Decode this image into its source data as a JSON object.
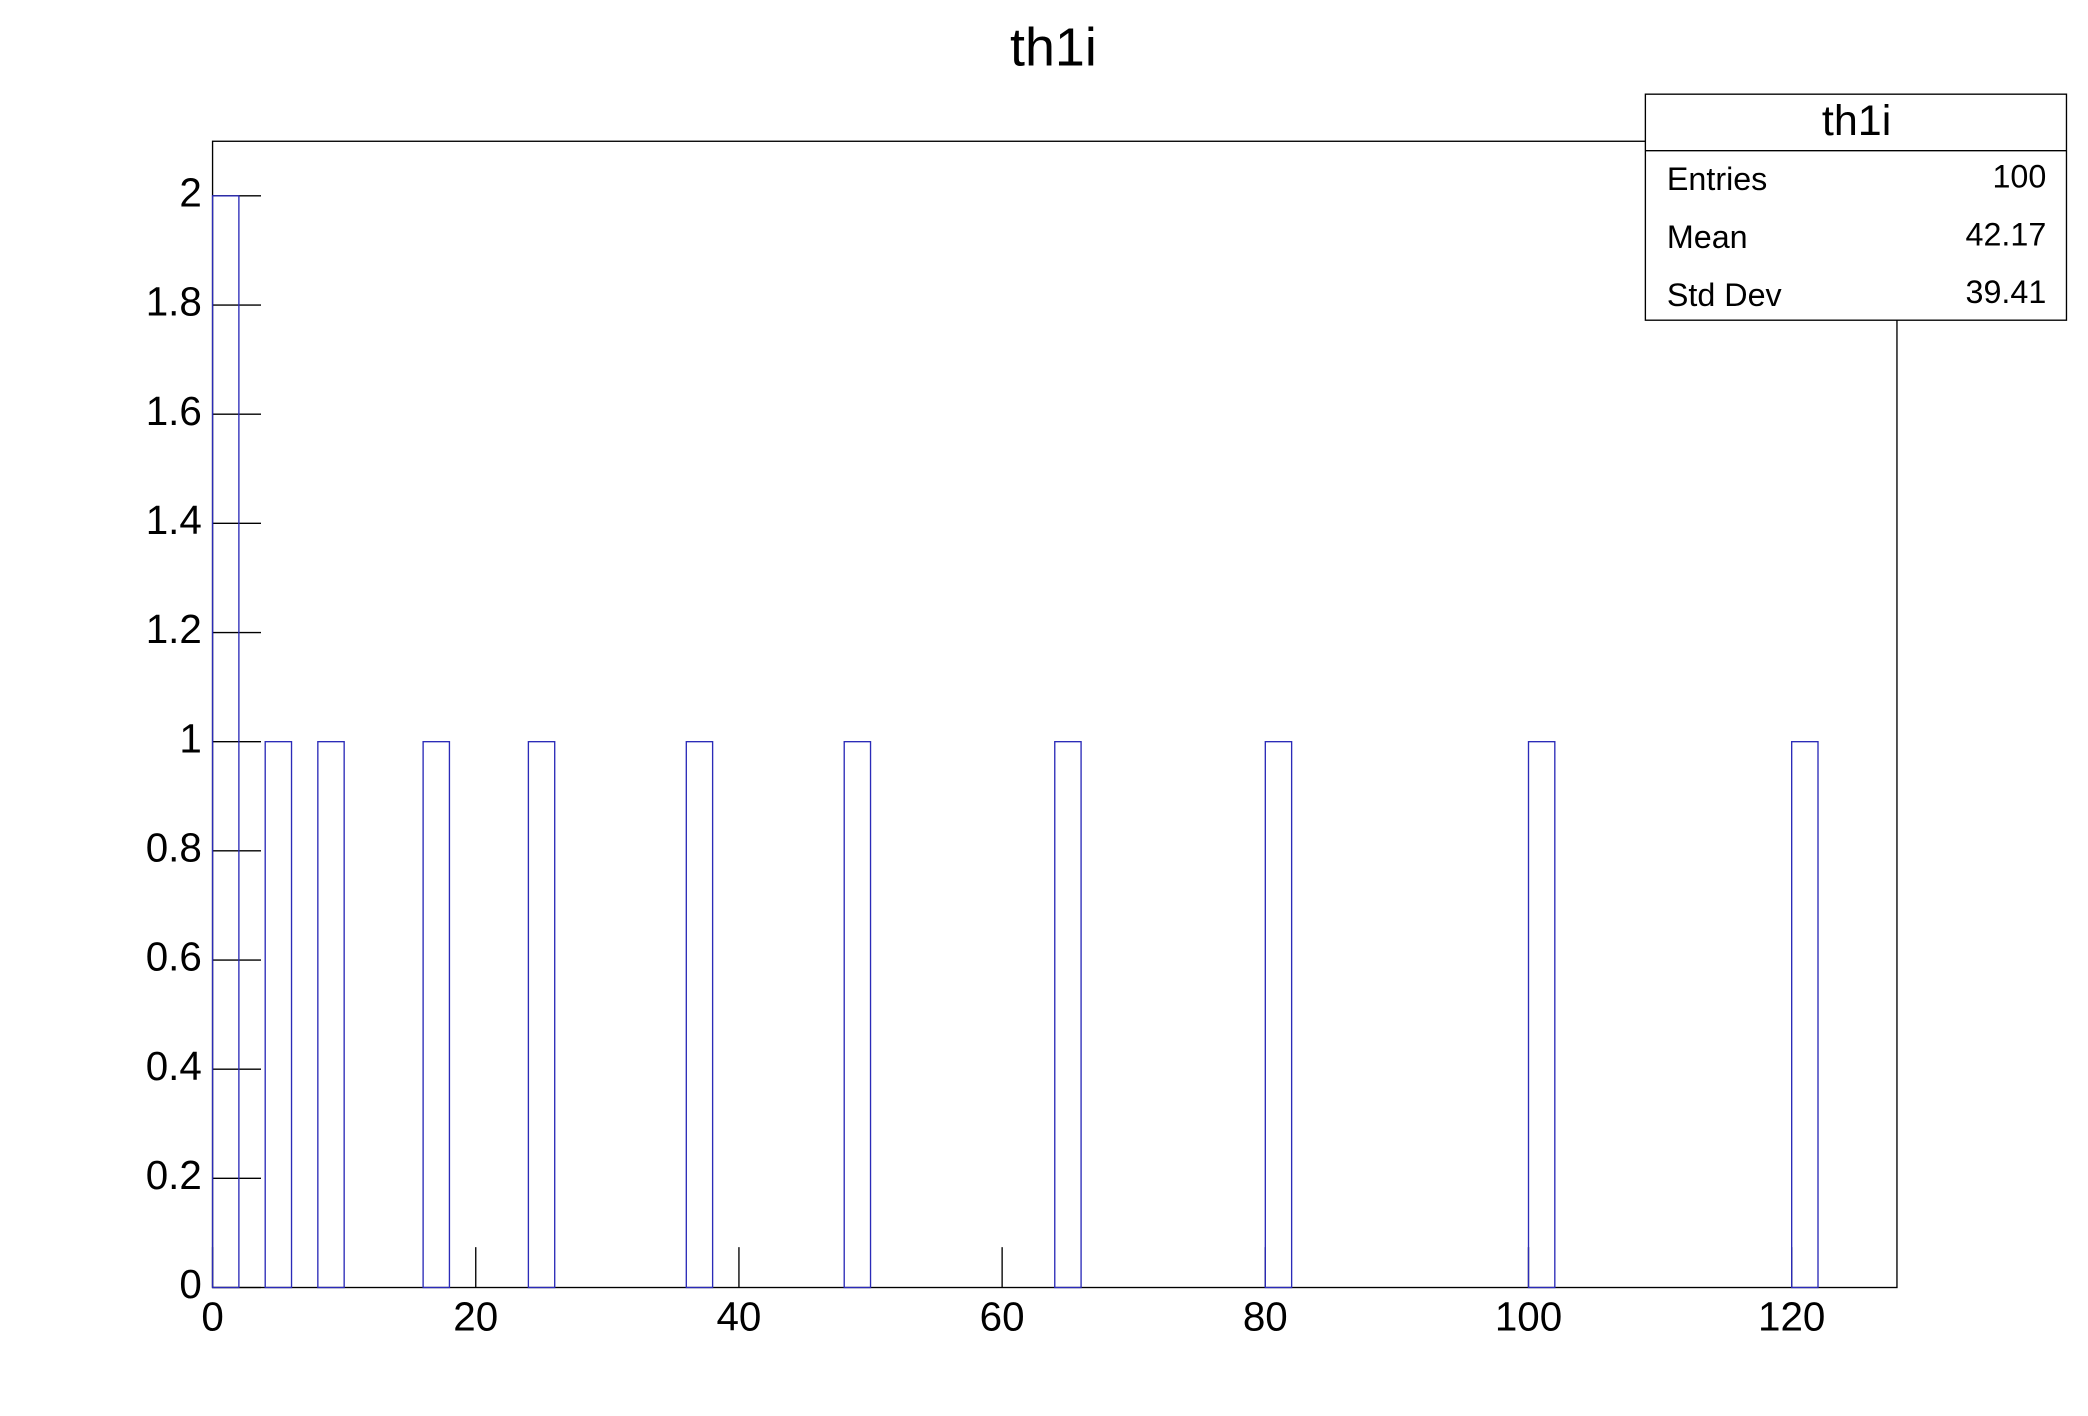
{
  "chart_data": {
    "type": "histogram",
    "title": "th1i",
    "bins": [
      0,
      2,
      4,
      6,
      8,
      10,
      12,
      14,
      16,
      18,
      20,
      22,
      24,
      26,
      28,
      30,
      32,
      34,
      36,
      38,
      40,
      42,
      44,
      46,
      48,
      50,
      52,
      54,
      56,
      58,
      60,
      62,
      64,
      66,
      68,
      70,
      72,
      74,
      76,
      78,
      80,
      82,
      84,
      86,
      88,
      90,
      92,
      94,
      96,
      98,
      100,
      102,
      104,
      106,
      108,
      110,
      112,
      114,
      116,
      118,
      120,
      122,
      124,
      126,
      128
    ],
    "counts": [
      2,
      0,
      1,
      0,
      1,
      0,
      0,
      0,
      1,
      0,
      0,
      0,
      1,
      0,
      0,
      0,
      0,
      0,
      1,
      0,
      0,
      0,
      0,
      0,
      1,
      0,
      0,
      0,
      0,
      0,
      0,
      0,
      1,
      0,
      0,
      0,
      0,
      0,
      0,
      0,
      1,
      0,
      0,
      0,
      0,
      0,
      0,
      0,
      0,
      0,
      1,
      0,
      0,
      0,
      0,
      0,
      0,
      0,
      0,
      0,
      1,
      0,
      0,
      0
    ],
    "color": "#2b2bb8",
    "xlim": [
      0,
      128
    ],
    "xticks": [
      0,
      20,
      40,
      60,
      80,
      100,
      120
    ],
    "ylim": [
      0,
      2.1
    ],
    "yticks": [
      0,
      0.2,
      0.4,
      0.6,
      0.8,
      1,
      1.2,
      1.4,
      1.6,
      1.8,
      2
    ],
    "stats": {
      "title": "th1i",
      "rows": [
        [
          "Entries",
          100
        ],
        [
          "Mean",
          42.17
        ],
        [
          "Std Dev",
          39.41
        ]
      ]
    }
  }
}
